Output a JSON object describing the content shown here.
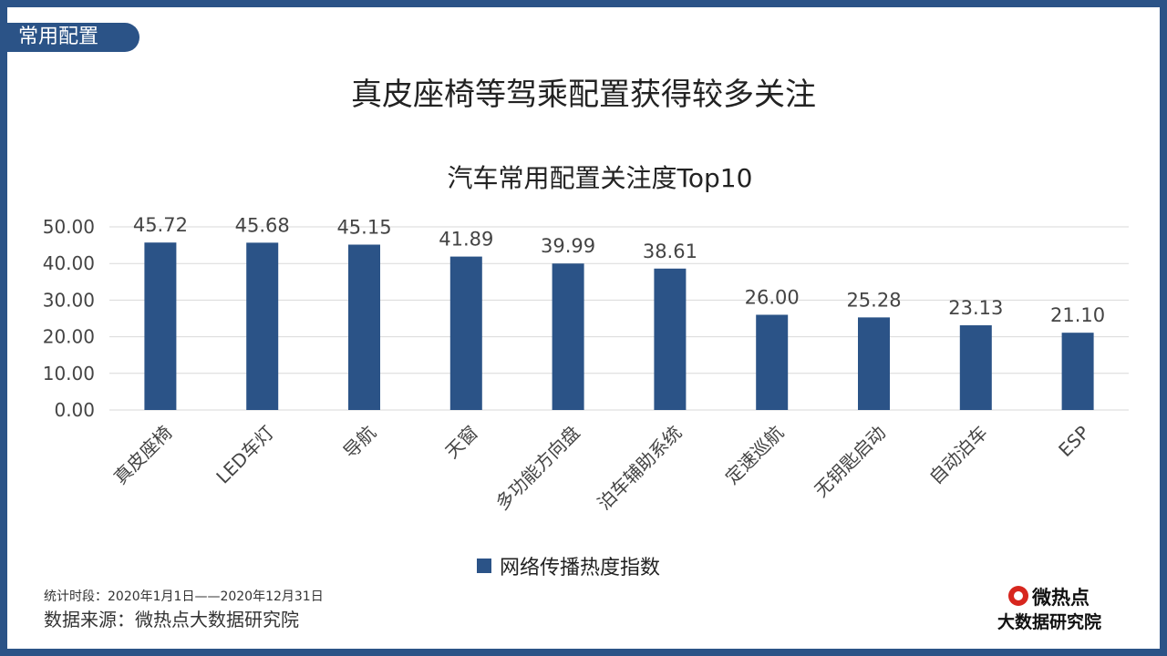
{
  "section_tab": "常用配置",
  "page_title": "真皮座椅等驾乘配置获得较多关注",
  "colors": {
    "frame": "#2b5387",
    "bar": "#2b5387",
    "grid": "#d9d9d9"
  },
  "chart_data": {
    "type": "bar",
    "title": "汽车常用配置关注度Top10",
    "categories": [
      "真皮座椅",
      "LED车灯",
      "导航",
      "天窗",
      "多功能方向盘",
      "泊车辅助系统",
      "定速巡航",
      "无钥匙启动",
      "自动泊车",
      "ESP"
    ],
    "series": [
      {
        "name": "网络传播热度指数",
        "values": [
          45.72,
          45.68,
          45.15,
          41.89,
          39.99,
          38.61,
          26.0,
          25.28,
          23.13,
          21.1
        ]
      }
    ],
    "ylim": [
      0,
      50
    ],
    "yticks": [
      "0.00",
      "10.00",
      "20.00",
      "30.00",
      "40.00",
      "50.00"
    ],
    "data_labels": [
      "45.72",
      "45.68",
      "45.15",
      "41.89",
      "39.99",
      "38.61",
      "26.00",
      "25.28",
      "23.13",
      "21.10"
    ],
    "grid": true,
    "legend_position": "bottom"
  },
  "footer": {
    "period": "统计时段：2020年1月1日——2020年12月31日",
    "source": "数据来源：微热点大数据研究院"
  },
  "logo": {
    "name": "微热点",
    "subtitle": "大数据研究院"
  }
}
